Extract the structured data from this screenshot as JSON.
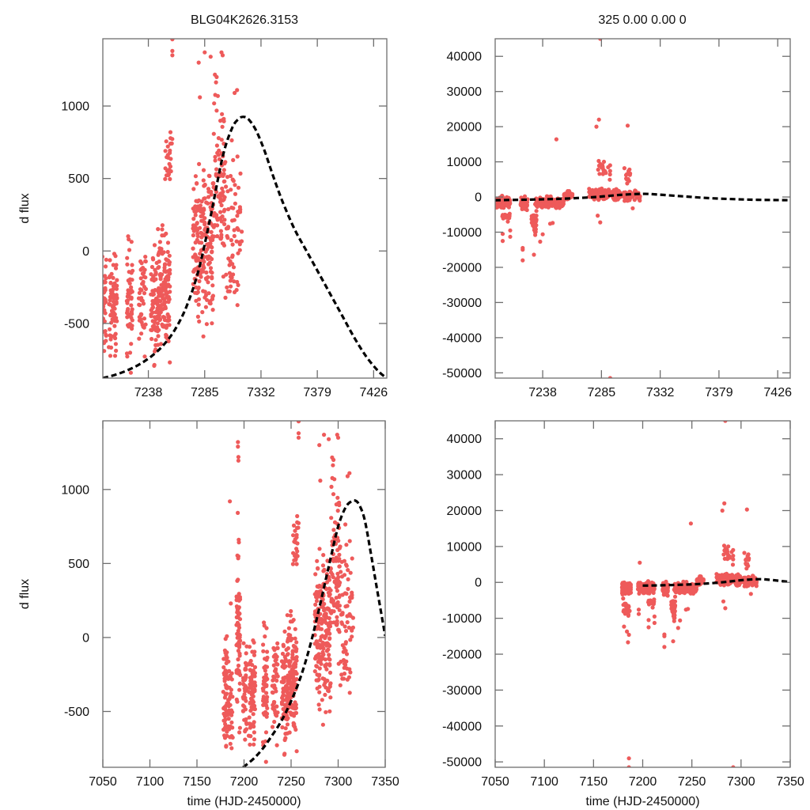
{
  "figure": {
    "title_left": "BLG04K2626.3153",
    "title_right": "325  0.00  0.00  0",
    "point_color": "#EE5A5A",
    "model_color": "#000000"
  },
  "chart_data": [
    {
      "id": "top-left",
      "type": "scatter",
      "title": "BLG04K2626.3153",
      "xlabel": "",
      "ylabel": "d flux",
      "xlim": [
        7200,
        7437
      ],
      "ylim": [
        -877,
        1464
      ],
      "xticks": [
        7238,
        7285,
        7332,
        7379,
        7426
      ],
      "xtick_labels": [
        "7238",
        "7285",
        "7332",
        "7379",
        "7426"
      ],
      "yticks": [
        -500,
        0,
        500,
        1000
      ],
      "ytick_labels": [
        "-500",
        "0",
        "500",
        "1000"
      ],
      "grid": false,
      "legend": "none",
      "series": [
        {
          "name": "observations",
          "kind": "points",
          "cluster_set": "small"
        },
        {
          "name": "model",
          "kind": "dashed-line",
          "curve": "model_small"
        }
      ]
    },
    {
      "id": "top-right",
      "type": "scatter",
      "title": "325  0.00  0.00  0",
      "xlabel": "",
      "ylabel": "",
      "xlim": [
        7200,
        7436
      ],
      "ylim": [
        -51500,
        45000
      ],
      "xticks": [
        7238,
        7285,
        7332,
        7379,
        7426
      ],
      "xtick_labels": [
        "7238",
        "7285",
        "7332",
        "7379",
        "7426"
      ],
      "yticks": [
        -50000,
        -40000,
        -30000,
        -20000,
        -10000,
        0,
        10000,
        20000,
        30000,
        40000
      ],
      "ytick_labels": [
        "-50000",
        "-40000",
        "-30000",
        "-20000",
        "-10000",
        "0",
        "10000",
        "20000",
        "30000",
        "40000"
      ],
      "grid": false,
      "legend": "none",
      "series": [
        {
          "name": "observations",
          "kind": "points",
          "cluster_set": "large"
        },
        {
          "name": "model",
          "kind": "dashed-line",
          "curve": "model_large"
        }
      ]
    },
    {
      "id": "bottom-left",
      "type": "scatter",
      "title": "",
      "xlabel": "time (HJD-2450000)",
      "ylabel": "d flux",
      "xlim": [
        7050,
        7350
      ],
      "ylim": [
        -877,
        1464
      ],
      "xticks": [
        7050,
        7100,
        7150,
        7200,
        7250,
        7300,
        7350
      ],
      "xtick_labels": [
        "7050",
        "7100",
        "7150",
        "7200",
        "7250",
        "7300",
        "7350"
      ],
      "yticks": [
        -500,
        0,
        500,
        1000
      ],
      "ytick_labels": [
        "-500",
        "0",
        "500",
        "1000"
      ],
      "grid": false,
      "legend": "none",
      "series": [
        {
          "name": "observations",
          "kind": "points",
          "cluster_set": "small"
        },
        {
          "name": "model",
          "kind": "dashed-line",
          "curve": "model_small"
        }
      ]
    },
    {
      "id": "bottom-right",
      "type": "scatter",
      "title": "",
      "xlabel": "time (HJD-2450000)",
      "ylabel": "",
      "xlim": [
        7050,
        7350
      ],
      "ylim": [
        -51500,
        45000
      ],
      "xticks": [
        7050,
        7100,
        7150,
        7200,
        7250,
        7300,
        7350
      ],
      "xtick_labels": [
        "7050",
        "7100",
        "7150",
        "7200",
        "7250",
        "7300",
        "7350"
      ],
      "yticks": [
        -50000,
        -40000,
        -30000,
        -20000,
        -10000,
        0,
        10000,
        20000,
        30000,
        40000
      ],
      "ytick_labels": [
        "-50000",
        "-40000",
        "-30000",
        "-20000",
        "-10000",
        "0",
        "10000",
        "20000",
        "30000",
        "40000"
      ],
      "grid": false,
      "legend": "none",
      "series": [
        {
          "name": "observations",
          "kind": "points",
          "cluster_set": "large"
        },
        {
          "name": "model",
          "kind": "dashed-line",
          "curve": "model_large"
        }
      ]
    }
  ],
  "observations": {
    "note": "approximate distribution of light-curve points, grouped by observing stripe (data units)",
    "small": {
      "clusters": [
        {
          "x": [
            7178,
            7182
          ],
          "y": [
            -880,
            120
          ],
          "n": 60
        },
        {
          "x": [
            7183,
            7188
          ],
          "y": [
            -880,
            -100
          ],
          "n": 40
        },
        {
          "x": [
            7192,
            7196
          ],
          "y": [
            -880,
            930
          ],
          "n": 70
        },
        {
          "x": [
            7199,
            7203
          ],
          "y": [
            -880,
            100
          ],
          "n": 40
        },
        {
          "x": [
            7205,
            7212
          ],
          "y": [
            -880,
            140
          ],
          "n": 70
        },
        {
          "x": [
            7220,
            7225
          ],
          "y": [
            -880,
            280
          ],
          "n": 55
        },
        {
          "x": [
            7230,
            7236
          ],
          "y": [
            -880,
            270
          ],
          "n": 45
        },
        {
          "x": [
            7240,
            7246
          ],
          "y": [
            -880,
            120
          ],
          "n": 70
        },
        {
          "x": [
            7246,
            7256
          ],
          "y": [
            -880,
            300
          ],
          "n": 140
        },
        {
          "x": [
            7252,
            7258
          ],
          "y": [
            300,
            960
          ],
          "n": 25
        },
        {
          "x": [
            7275,
            7283
          ],
          "y": [
            -600,
            700
          ],
          "n": 90
        },
        {
          "x": [
            7283,
            7292
          ],
          "y": [
            -880,
            900
          ],
          "n": 110
        },
        {
          "x": [
            7292,
            7302
          ],
          "y": [
            -500,
            1400
          ],
          "n": 90
        },
        {
          "x": [
            7302,
            7316
          ],
          "y": [
            -850,
            1100
          ],
          "n": 70
        }
      ],
      "extra_points": [
        [
          7193.5,
          1320
        ],
        [
          7193.5,
          1290
        ],
        [
          7194,
          1220
        ],
        [
          7194,
          1195
        ],
        [
          7258,
          1460
        ],
        [
          7258,
          1380
        ],
        [
          7258,
          1350
        ],
        [
          7285,
          1370
        ],
        [
          7290,
          1340
        ],
        [
          7299,
          1370
        ],
        [
          7300,
          1350
        ],
        [
          7295,
          1200
        ],
        [
          7280,
          1300
        ],
        [
          7281,
          1060
        ],
        [
          7312,
          1110
        ],
        [
          7310,
          1090
        ],
        [
          7185,
          920
        ],
        [
          7186,
          230
        ]
      ]
    },
    "large": {
      "clusters": [
        {
          "x": [
            7179,
            7188
          ],
          "y": [
            -4000,
            800
          ],
          "n": 150
        },
        {
          "x": [
            7180,
            7188
          ],
          "y": [
            -10000,
            -4000
          ],
          "n": 25
        },
        {
          "x": [
            7195,
            7212
          ],
          "y": [
            -3500,
            900
          ],
          "n": 160
        },
        {
          "x": [
            7205,
            7212
          ],
          "y": [
            -7500,
            -3500
          ],
          "n": 20
        },
        {
          "x": [
            7220,
            7226
          ],
          "y": [
            -4500,
            600
          ],
          "n": 60
        },
        {
          "x": [
            7229,
            7233
          ],
          "y": [
            -12500,
            -2000
          ],
          "n": 35
        },
        {
          "x": [
            7232,
            7255
          ],
          "y": [
            -4000,
            800
          ],
          "n": 160
        },
        {
          "x": [
            7255,
            7262
          ],
          "y": [
            -1500,
            2500
          ],
          "n": 30
        },
        {
          "x": [
            7275,
            7300
          ],
          "y": [
            -1500,
            3000
          ],
          "n": 170
        },
        {
          "x": [
            7282,
            7292
          ],
          "y": [
            3000,
            12000
          ],
          "n": 20
        },
        {
          "x": [
            7300,
            7316
          ],
          "y": [
            -1500,
            2500
          ],
          "n": 80
        },
        {
          "x": [
            7303,
            7308
          ],
          "y": [
            3000,
            8500
          ],
          "n": 12
        }
      ],
      "extra_points": [
        [
          7281,
          20000
        ],
        [
          7283,
          22000
        ],
        [
          7306,
          20300
        ],
        [
          7249,
          16400
        ],
        [
          7197,
          5500
        ],
        [
          7181,
          -12300
        ],
        [
          7184,
          -13700
        ],
        [
          7185,
          -16700
        ],
        [
          7186,
          -14600
        ],
        [
          7196,
          -7600
        ],
        [
          7196,
          -8800
        ],
        [
          7206,
          -10500
        ],
        [
          7206,
          -12500
        ],
        [
          7212,
          -9500
        ],
        [
          7212,
          -11300
        ],
        [
          7222,
          -14500
        ],
        [
          7222,
          -15000
        ],
        [
          7222,
          -18000
        ],
        [
          7231,
          -16400
        ],
        [
          7236,
          -12700
        ],
        [
          7238,
          -10600
        ],
        [
          7244,
          -7600
        ],
        [
          7246,
          -7400
        ],
        [
          7284,
          -7200
        ],
        [
          7282,
          -5300
        ],
        [
          7310,
          -3200
        ],
        [
          7186,
          -49000
        ],
        [
          7186,
          -52000
        ],
        [
          7292,
          -51500
        ],
        [
          7284,
          45000
        ]
      ]
    }
  },
  "models": {
    "note": "model light-curve samples (time, d flux)",
    "model_small": [
      [
        7200,
        -880
      ],
      [
        7210,
        -855
      ],
      [
        7220,
        -825
      ],
      [
        7230,
        -785
      ],
      [
        7240,
        -730
      ],
      [
        7250,
        -655
      ],
      [
        7260,
        -545
      ],
      [
        7270,
        -380
      ],
      [
        7280,
        -130
      ],
      [
        7290,
        240
      ],
      [
        7300,
        650
      ],
      [
        7308,
        850
      ],
      [
        7314,
        915
      ],
      [
        7318,
        925
      ],
      [
        7322,
        905
      ],
      [
        7328,
        830
      ],
      [
        7335,
        690
      ],
      [
        7342,
        520
      ],
      [
        7350,
        340
      ],
      [
        7360,
        150
      ],
      [
        7370,
        0
      ],
      [
        7380,
        -150
      ],
      [
        7390,
        -300
      ],
      [
        7400,
        -450
      ],
      [
        7410,
        -600
      ],
      [
        7420,
        -730
      ],
      [
        7430,
        -830
      ],
      [
        7437,
        -880
      ]
    ],
    "model_small_bottom": [
      [
        7199,
        -880
      ],
      [
        7210,
        -820
      ],
      [
        7220,
        -750
      ],
      [
        7230,
        -660
      ],
      [
        7240,
        -560
      ],
      [
        7250,
        -430
      ],
      [
        7260,
        -270
      ],
      [
        7270,
        -60
      ],
      [
        7280,
        200
      ],
      [
        7290,
        480
      ],
      [
        7300,
        750
      ],
      [
        7308,
        880
      ],
      [
        7314,
        920
      ],
      [
        7318,
        925
      ],
      [
        7322,
        900
      ],
      [
        7328,
        800
      ],
      [
        7335,
        560
      ],
      [
        7342,
        300
      ],
      [
        7350,
        10
      ]
    ],
    "model_large": [
      [
        7200,
        -900
      ],
      [
        7220,
        -800
      ],
      [
        7240,
        -650
      ],
      [
        7260,
        -400
      ],
      [
        7280,
        0
      ],
      [
        7300,
        600
      ],
      [
        7318,
        900
      ],
      [
        7330,
        700
      ],
      [
        7350,
        200
      ],
      [
        7370,
        -300
      ],
      [
        7390,
        -600
      ],
      [
        7410,
        -800
      ],
      [
        7436,
        -900
      ]
    ],
    "model_large_bottom": [
      [
        7200,
        -900
      ],
      [
        7220,
        -800
      ],
      [
        7240,
        -650
      ],
      [
        7260,
        -400
      ],
      [
        7280,
        0
      ],
      [
        7300,
        600
      ],
      [
        7318,
        900
      ],
      [
        7330,
        700
      ],
      [
        7350,
        100
      ]
    ]
  }
}
